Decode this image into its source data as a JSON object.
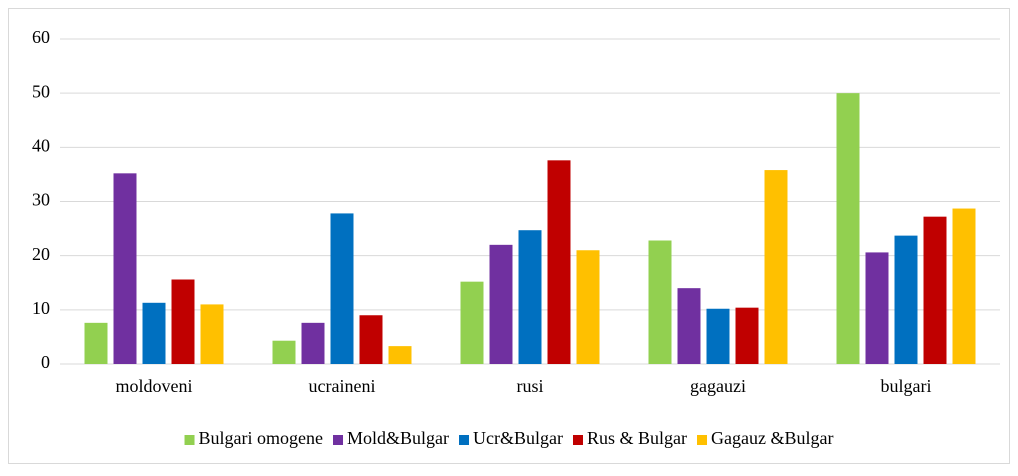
{
  "chart_data": {
    "type": "bar",
    "categories": [
      "moldoveni",
      "ucraineni",
      "rusi",
      "gagauzi",
      "bulgari"
    ],
    "series": [
      {
        "name": "Bulgari omogene",
        "color": "#92d050",
        "values": [
          7.6,
          4.3,
          15.2,
          22.8,
          50
        ]
      },
      {
        "name": "Mold&Bulgar",
        "color": "#7030a0",
        "values": [
          35.2,
          7.6,
          22,
          14,
          20.6
        ]
      },
      {
        "name": "Ucr&Bulgar",
        "color": "#0070c0",
        "values": [
          11.3,
          27.8,
          24.7,
          10.2,
          23.7
        ]
      },
      {
        "name": "Rus & Bulgar",
        "color": "#c00000",
        "values": [
          15.6,
          9,
          37.6,
          10.4,
          27.2
        ]
      },
      {
        "name": "Gagauz &Bulgar",
        "color": "#ffc000",
        "values": [
          11,
          3.3,
          21,
          35.8,
          28.7
        ]
      }
    ],
    "ylim": [
      0,
      60
    ],
    "yticks": [
      0,
      10,
      20,
      30,
      40,
      50,
      60
    ],
    "grid": true,
    "legend": "bottom"
  }
}
